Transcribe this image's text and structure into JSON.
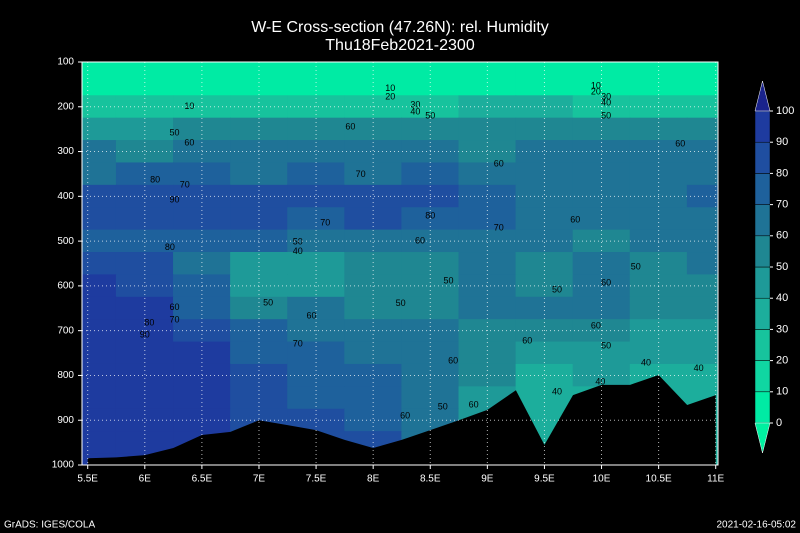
{
  "chart_data": {
    "type": "contour",
    "title": "W-E Cross-section (47.26N): rel. Humidity",
    "subtitle": "Thu18Feb2021-2300",
    "footer_left": "GrADS: IGES/COLA",
    "footer_right": "2021-02-16-05:02",
    "xlim": [
      5.45,
      11.02
    ],
    "ylim": [
      1000,
      100
    ],
    "xticks": [
      {
        "value": 5.5,
        "label": "5.5E"
      },
      {
        "value": 6,
        "label": "6E"
      },
      {
        "value": 6.5,
        "label": "6.5E"
      },
      {
        "value": 7,
        "label": "7E"
      },
      {
        "value": 7.5,
        "label": "7.5E"
      },
      {
        "value": 8,
        "label": "8E"
      },
      {
        "value": 8.5,
        "label": "8.5E"
      },
      {
        "value": 9,
        "label": "9E"
      },
      {
        "value": 9.5,
        "label": "9.5E"
      },
      {
        "value": 10,
        "label": "10E"
      },
      {
        "value": 10.5,
        "label": "10.5E"
      },
      {
        "value": 11,
        "label": "11E"
      }
    ],
    "yticks": [
      100,
      200,
      300,
      400,
      500,
      600,
      700,
      800,
      900,
      1000
    ],
    "grid": true,
    "x": [
      5.5,
      6,
      6.5,
      7,
      7.5,
      8,
      8.5,
      9,
      9.5,
      10,
      10.5,
      11
    ],
    "y": [
      100,
      150,
      200,
      250,
      300,
      350,
      400,
      450,
      500,
      550,
      600,
      650,
      700,
      750,
      800,
      850,
      900,
      950,
      1000
    ],
    "values": [
      [
        3,
        3,
        3,
        3,
        3,
        3,
        3,
        3,
        3,
        3,
        3,
        3
      ],
      [
        8,
        8,
        8,
        8,
        8,
        8,
        8,
        8,
        8,
        8,
        8,
        8
      ],
      [
        25,
        22,
        20,
        22,
        25,
        25,
        28,
        30,
        30,
        28,
        25,
        25
      ],
      [
        45,
        48,
        52,
        55,
        52,
        50,
        52,
        50,
        52,
        55,
        52,
        50
      ],
      [
        62,
        58,
        62,
        60,
        62,
        62,
        62,
        58,
        60,
        62,
        65,
        62
      ],
      [
        68,
        72,
        70,
        68,
        70,
        68,
        70,
        65,
        68,
        65,
        62,
        65
      ],
      [
        82,
        88,
        85,
        88,
        85,
        88,
        85,
        75,
        65,
        68,
        65,
        70
      ],
      [
        80,
        82,
        85,
        80,
        78,
        80,
        75,
        70,
        65,
        62,
        60,
        60
      ],
      [
        70,
        72,
        75,
        70,
        65,
        62,
        62,
        60,
        62,
        58,
        60,
        62
      ],
      [
        85,
        80,
        65,
        45,
        45,
        50,
        55,
        60,
        58,
        62,
        58,
        60
      ],
      [
        92,
        88,
        70,
        48,
        45,
        50,
        55,
        60,
        55,
        60,
        55,
        58
      ],
      [
        95,
        90,
        72,
        58,
        60,
        55,
        58,
        62,
        62,
        60,
        55,
        50
      ],
      [
        95,
        95,
        80,
        72,
        65,
        60,
        60,
        55,
        50,
        55,
        48,
        45
      ],
      [
        95,
        95,
        90,
        78,
        70,
        65,
        60,
        50,
        45,
        45,
        42,
        40
      ],
      [
        96,
        95,
        92,
        82,
        72,
        70,
        65,
        50,
        38,
        40,
        35,
        32
      ],
      [
        96,
        95,
        92,
        85,
        78,
        72,
        62,
        45,
        30,
        35,
        32,
        30
      ],
      [
        96,
        96,
        92,
        88,
        82,
        75,
        60,
        45,
        35,
        35,
        30,
        30
      ],
      [
        96,
        96,
        92,
        88,
        85,
        80,
        60,
        45,
        35,
        35,
        30,
        30
      ],
      [
        96,
        96,
        92,
        88,
        85,
        80,
        60,
        45,
        35,
        35,
        30,
        30
      ]
    ],
    "levels": [
      0,
      10,
      20,
      30,
      40,
      50,
      60,
      70,
      80,
      90,
      100
    ],
    "colors": [
      "#00f0a0",
      "#00eba4",
      "#10d6a2",
      "#17c39d",
      "#1cae9c",
      "#1e9a98",
      "#1f8792",
      "#1f7396",
      "#1e619c",
      "#1f4ea0",
      "#1e3b9f",
      "#1a238c"
    ],
    "terrain": {
      "color": "#000000",
      "x": [
        5.5,
        5.75,
        6,
        6.25,
        6.5,
        6.75,
        7,
        7.25,
        7.5,
        7.75,
        8,
        8.25,
        8.5,
        8.75,
        9,
        9.25,
        9.5,
        9.75,
        10,
        10.25,
        10.5,
        10.75,
        11
      ],
      "values": [
        985,
        983,
        978,
        962,
        933,
        926,
        900,
        911,
        922,
        944,
        962,
        944,
        922,
        900,
        877,
        833,
        955,
        844,
        821,
        821,
        799,
        866,
        844
      ]
    },
    "contour_labels": [
      {
        "x": 6.39,
        "y": 200,
        "value": 10
      },
      {
        "x": 8.15,
        "y": 160,
        "value": 10
      },
      {
        "x": 8.15,
        "y": 178,
        "value": 20
      },
      {
        "x": 8.37,
        "y": 196,
        "value": 30
      },
      {
        "x": 8.37,
        "y": 212,
        "value": 40
      },
      {
        "x": 8.5,
        "y": 221,
        "value": 50
      },
      {
        "x": 9.95,
        "y": 154,
        "value": 10
      },
      {
        "x": 9.95,
        "y": 167,
        "value": 20
      },
      {
        "x": 10.04,
        "y": 178,
        "value": 30
      },
      {
        "x": 10.04,
        "y": 192,
        "value": 40
      },
      {
        "x": 10.04,
        "y": 221,
        "value": 50
      },
      {
        "x": 6.26,
        "y": 259,
        "value": 50
      },
      {
        "x": 6.39,
        "y": 281,
        "value": 60
      },
      {
        "x": 7.8,
        "y": 245,
        "value": 60
      },
      {
        "x": 6.09,
        "y": 364,
        "value": 80
      },
      {
        "x": 6.35,
        "y": 375,
        "value": 70
      },
      {
        "x": 6.26,
        "y": 408,
        "value": 90
      },
      {
        "x": 7.89,
        "y": 352,
        "value": 70
      },
      {
        "x": 9.1,
        "y": 328,
        "value": 60
      },
      {
        "x": 10.69,
        "y": 283,
        "value": 60
      },
      {
        "x": 8.5,
        "y": 444,
        "value": 80
      },
      {
        "x": 7.58,
        "y": 460,
        "value": 70
      },
      {
        "x": 9.1,
        "y": 471,
        "value": 70
      },
      {
        "x": 8.41,
        "y": 500,
        "value": 60
      },
      {
        "x": 9.77,
        "y": 453,
        "value": 60
      },
      {
        "x": 7.34,
        "y": 502,
        "value": 50
      },
      {
        "x": 7.34,
        "y": 524,
        "value": 40
      },
      {
        "x": 6.22,
        "y": 515,
        "value": 80
      },
      {
        "x": 8.66,
        "y": 589,
        "value": 50
      },
      {
        "x": 9.61,
        "y": 609,
        "value": 50
      },
      {
        "x": 10.04,
        "y": 594,
        "value": 60
      },
      {
        "x": 10.3,
        "y": 558,
        "value": 50
      },
      {
        "x": 7.08,
        "y": 638,
        "value": 50
      },
      {
        "x": 6.26,
        "y": 649,
        "value": 60
      },
      {
        "x": 6.26,
        "y": 676,
        "value": 70
      },
      {
        "x": 6.04,
        "y": 683,
        "value": 80
      },
      {
        "x": 6.0,
        "y": 710,
        "value": 90
      },
      {
        "x": 7.46,
        "y": 667,
        "value": 60
      },
      {
        "x": 8.24,
        "y": 640,
        "value": 50
      },
      {
        "x": 7.34,
        "y": 730,
        "value": 70
      },
      {
        "x": 9.35,
        "y": 723,
        "value": 60
      },
      {
        "x": 9.95,
        "y": 690,
        "value": 60
      },
      {
        "x": 10.04,
        "y": 734,
        "value": 50
      },
      {
        "x": 8.7,
        "y": 768,
        "value": 60
      },
      {
        "x": 10.39,
        "y": 772,
        "value": 40
      },
      {
        "x": 10.85,
        "y": 785,
        "value": 40
      },
      {
        "x": 9.99,
        "y": 815,
        "value": 40
      },
      {
        "x": 9.61,
        "y": 837,
        "value": 40
      },
      {
        "x": 8.88,
        "y": 866,
        "value": 60
      },
      {
        "x": 8.61,
        "y": 871,
        "value": 50
      },
      {
        "x": 8.28,
        "y": 891,
        "value": 60
      },
      {
        "x": 8.61,
        "y": 929,
        "value": 50
      }
    ]
  }
}
